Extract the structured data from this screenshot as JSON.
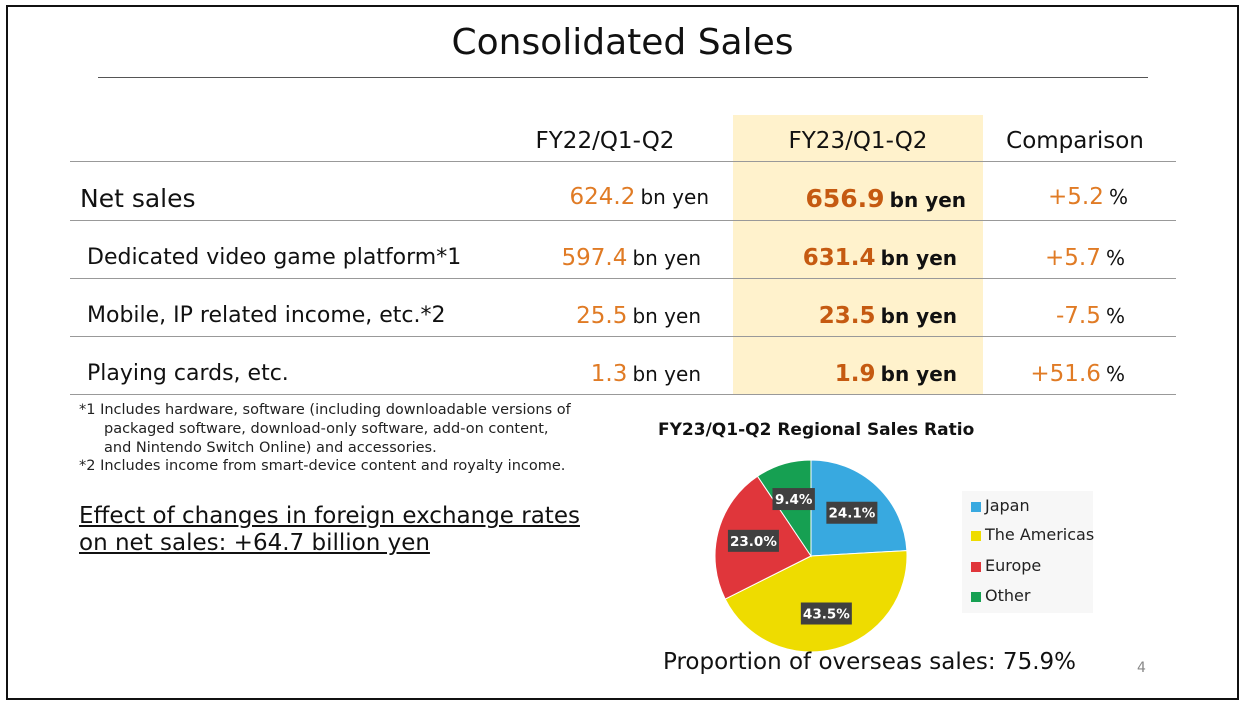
{
  "slide": {
    "title": "Consolidated Sales",
    "page_number": "4"
  },
  "table": {
    "headers": [
      "FY22/Q1-Q2",
      "FY23/Q1-Q2",
      "Comparison"
    ],
    "rows": [
      {
        "label": "Net sales",
        "fy22": "624.2",
        "fy23": "656.9",
        "unit": "bn yen",
        "comparison": "+5.2",
        "pct": "%"
      },
      {
        "label": "Dedicated video game platform*1",
        "fy22": "597.4",
        "fy23": "631.4",
        "unit": "bn yen",
        "comparison": "+5.7",
        "pct": "%"
      },
      {
        "label": "Mobile, IP related income, etc.*2",
        "fy22": "25.5",
        "fy23": "23.5",
        "unit": "bn yen",
        "comparison": "-7.5",
        "pct": "%"
      },
      {
        "label": "Playing cards, etc.",
        "fy22": "1.3",
        "fy23": "1.9",
        "unit": "bn yen",
        "comparison": "+51.6",
        "pct": "%"
      }
    ]
  },
  "notes": {
    "note1_line1": "*1 Includes hardware, software (including downloadable versions of",
    "note1_line2": "packaged software, download-only software, add-on content,",
    "note1_line3": "and Nintendo Switch Online) and accessories.",
    "note2": "*2 Includes income from smart-device content and royalty income."
  },
  "fx": {
    "line1": "Effect of changes in foreign exchange rates",
    "line2": "on net sales: +64.7 billion yen"
  },
  "chart_data": {
    "type": "pie",
    "title": "FY23/Q1-Q2 Regional Sales Ratio",
    "categories": [
      "Japan",
      "The Americas",
      "Europe",
      "Other"
    ],
    "values": [
      24.1,
      43.5,
      23.0,
      9.4
    ],
    "labels": [
      "24.1%",
      "43.5%",
      "23.0%",
      "9.4%"
    ],
    "colors": [
      "#38a9e0",
      "#eedc00",
      "#e0363b",
      "#16a052"
    ],
    "legend": "right"
  },
  "overseas_text": "Proportion of overseas sales: 75.9%",
  "colors": {
    "value_orange": "#e07b25",
    "value_bold": "#c55a11",
    "highlight": "#fff2cc"
  }
}
